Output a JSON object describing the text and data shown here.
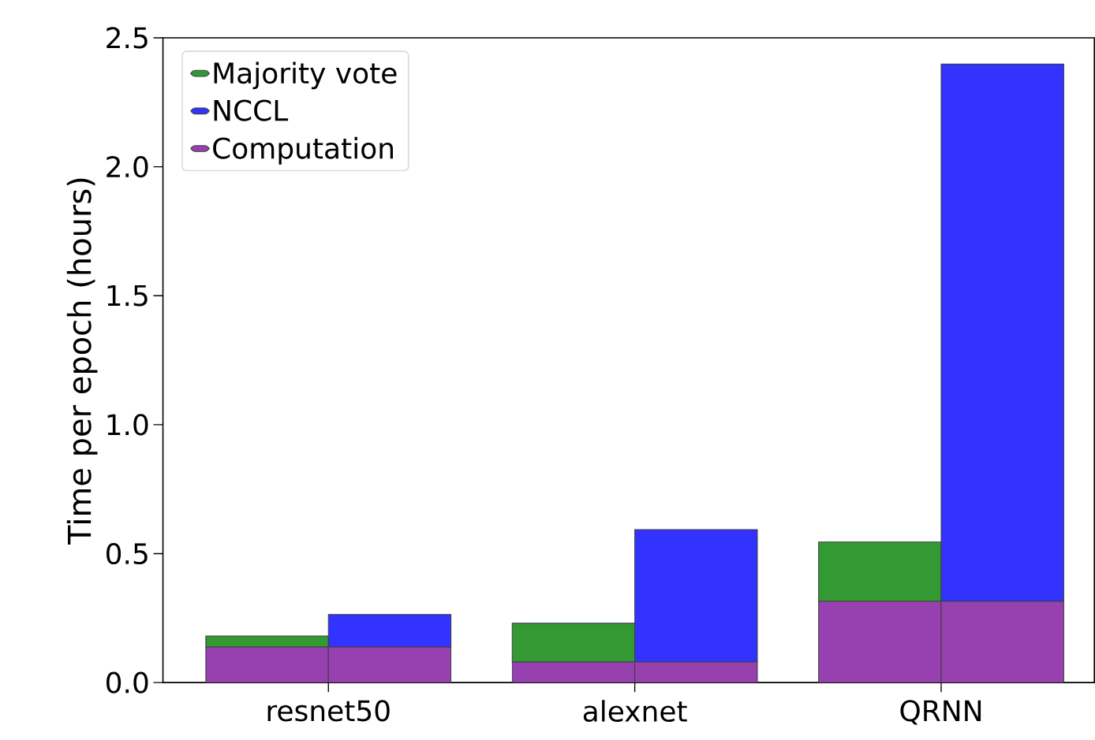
{
  "chart_data": {
    "type": "bar",
    "ylabel": "Time per epoch (hours)",
    "categories": [
      "resnet50",
      "alexnet",
      "QRNN"
    ],
    "ylim": [
      0,
      2.5
    ],
    "yticks": [
      {
        "value": 0,
        "label": "0.0"
      },
      {
        "value": 0.5,
        "label": "0.5"
      },
      {
        "value": 1,
        "label": "1.0"
      },
      {
        "value": 1.5,
        "label": "1.5"
      },
      {
        "value": 2,
        "label": "2.0"
      },
      {
        "value": 2.5,
        "label": "2.5"
      }
    ],
    "legend": "top left",
    "series": [
      {
        "name": "Majority vote",
        "color": "#339933",
        "values": [
          0.043,
          0.15,
          0.23
        ],
        "base": [
          0.138,
          0.08,
          0.315
        ]
      },
      {
        "name": "NCCL",
        "color": "#3333ff",
        "values": [
          0.126,
          0.513,
          2.083
        ],
        "base": [
          0.138,
          0.08,
          0.315
        ]
      },
      {
        "name": "Computation",
        "color": "#9741b0",
        "values": [
          0.138,
          0.08,
          0.315
        ]
      },
      {
        "color": "#9741b0",
        "values": [
          0.138,
          0.08,
          0.315
        ]
      }
    ]
  }
}
